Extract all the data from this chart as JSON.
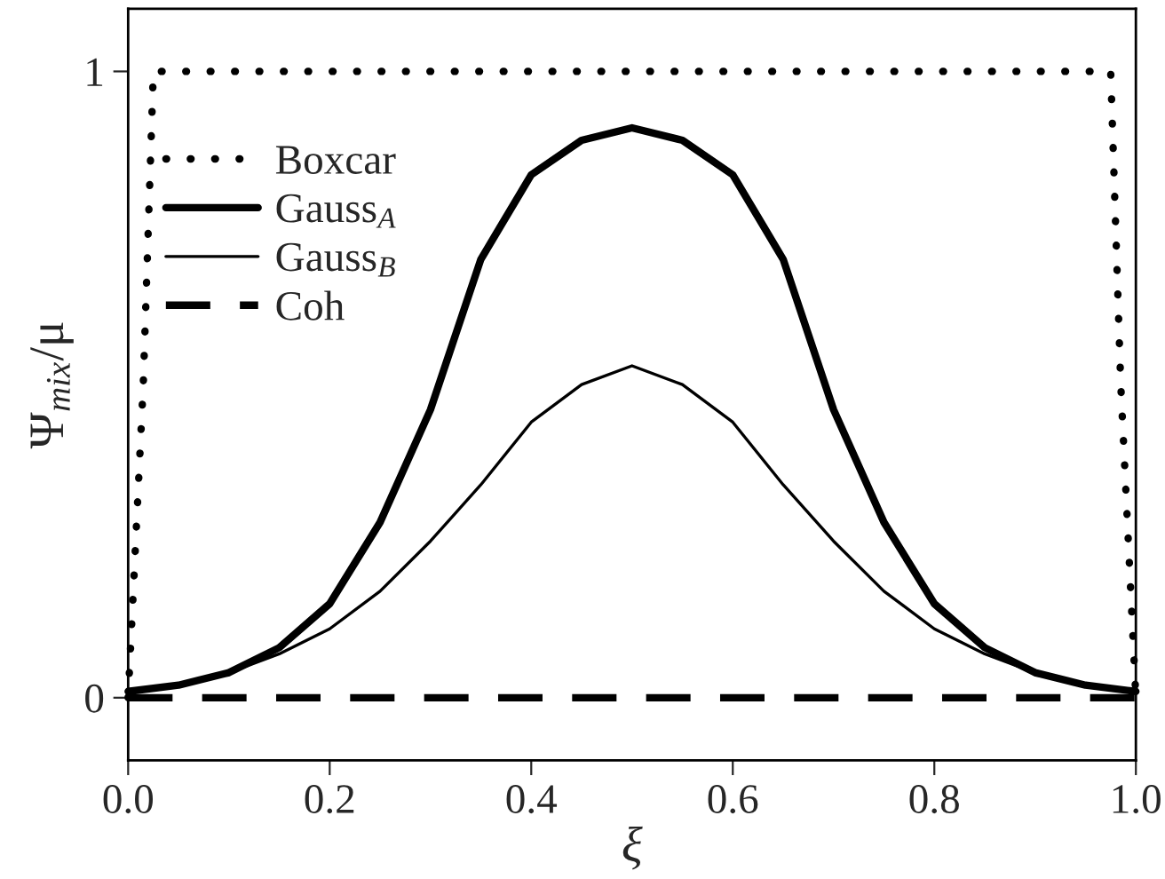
{
  "chart_data": {
    "type": "line",
    "xlabel": "ξ",
    "ylabel": "Ψ$_{mix}$/μ",
    "xlim": [
      0,
      1
    ],
    "ylim": [
      -0.1,
      1.1
    ],
    "xticks": [
      {
        "value": 0,
        "label": "0.0"
      },
      0.2,
      0.4,
      0.6,
      0.8,
      {
        "value": 1,
        "label": "1.0"
      }
    ],
    "yticks": [
      0,
      1
    ],
    "grid": false,
    "legend": "top left",
    "marker": "none",
    "series": [
      {
        "name": "Boxcar",
        "color": "#000000",
        "line_style": "dotted",
        "x": [
          0,
          0.015,
          0.025,
          0.975,
          0.985,
          1
        ],
        "values": [
          0,
          0.5,
          1,
          1,
          0.5,
          0
        ]
      },
      {
        "name": "Gauss$_{A}$",
        "color": "#000000",
        "line_style": "solid",
        "x": [
          0,
          0.05,
          0.1,
          0.15,
          0.2,
          0.25,
          0.3,
          0.35,
          0.4,
          0.45,
          0.5,
          0.55,
          0.6,
          0.65,
          0.7,
          0.75,
          0.8,
          0.85,
          0.9,
          0.95,
          1
        ],
        "values": [
          0.01,
          0.02,
          0.04,
          0.08,
          0.15,
          0.28,
          0.46,
          0.7,
          0.835,
          0.89,
          0.91,
          0.89,
          0.835,
          0.7,
          0.46,
          0.28,
          0.15,
          0.08,
          0.04,
          0.02,
          0.01
        ]
      },
      {
        "name": "Gauss$_{B}$",
        "color": "#000000",
        "line_style": "solid",
        "x": [
          0,
          0.05,
          0.1,
          0.15,
          0.2,
          0.25,
          0.3,
          0.35,
          0.4,
          0.45,
          0.5,
          0.55,
          0.6,
          0.65,
          0.7,
          0.75,
          0.8,
          0.85,
          0.9,
          0.95,
          1
        ],
        "values": [
          0.01,
          0.02,
          0.04,
          0.07,
          0.11,
          0.17,
          0.25,
          0.34,
          0.44,
          0.5,
          0.53,
          0.5,
          0.44,
          0.34,
          0.25,
          0.17,
          0.11,
          0.07,
          0.04,
          0.02,
          0.01
        ]
      },
      {
        "name": "Coh",
        "color": "#000000",
        "line_style": "dashed",
        "x": [
          0,
          1
        ],
        "values": [
          0,
          0
        ]
      }
    ]
  }
}
